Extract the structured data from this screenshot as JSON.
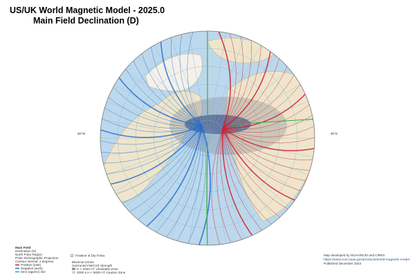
{
  "header": {
    "title": "US/UK World Magnetic Model - 2025.0",
    "subtitle": "Main Field Declination (D)"
  },
  "map": {
    "labels": {
      "west": "90°W",
      "east": "90°E"
    }
  },
  "legend": {
    "title": "Main Field",
    "items": [
      "Declination (D)",
      "North Polar Region",
      "Polar Stereographic Projection",
      "Contour interval: 2 degrees"
    ],
    "lines": [
      {
        "label": "Positive (east)",
        "color": "#d0202a"
      },
      {
        "label": "Negative (west)",
        "color": "#1f6fd0"
      },
      {
        "label": "Zero (agonic) line",
        "color": "#3cb043"
      }
    ]
  },
  "zones": {
    "dip": "Position of Dip Poles",
    "title": "Blackout Zones",
    "subtitle": "Horizontal Field (H) Strength",
    "items": [
      "H < 2000 nT: Unreliable Zone",
      "2000 ≤ H < 6000 nT: Caution Zone"
    ]
  },
  "credits": [
    "Map developed by NOAA/NCEI and CIRES",
    "https://www.ncei.noaa.gov/products/world-magnetic-model",
    "Published December 2024"
  ]
}
